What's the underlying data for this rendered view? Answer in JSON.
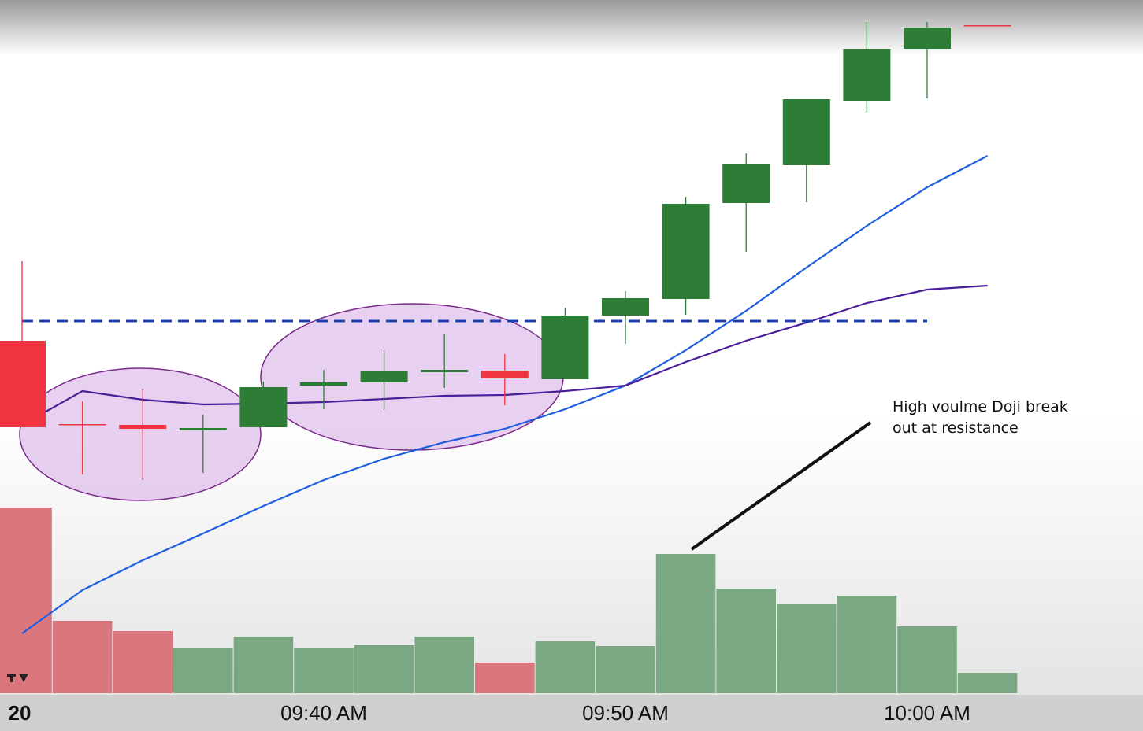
{
  "chart_data": {
    "type": "candlestick",
    "categories": [
      "20",
      null,
      null,
      null,
      null,
      "09:40 AM",
      null,
      null,
      null,
      null,
      "09:50 AM",
      null,
      null,
      null,
      null,
      "10:00 AM",
      null
    ],
    "open": [
      44.7,
      34.1,
      34.0,
      33.3,
      33.7,
      39.0,
      39.4,
      40.7,
      40.9,
      39.8,
      47.9,
      50.0,
      62.2,
      67.0,
      75.2,
      81.8,
      84.8
    ],
    "high": [
      54.8,
      37.0,
      38.6,
      35.3,
      39.5,
      41.0,
      43.5,
      45.6,
      43.0,
      48.9,
      51.0,
      63.0,
      68.5,
      75.4,
      85.2,
      85.2,
      84.8
    ],
    "low": [
      33.7,
      27.7,
      27.0,
      27.9,
      33.7,
      36.0,
      35.9,
      38.7,
      36.5,
      39.8,
      44.3,
      48.0,
      56.0,
      62.3,
      73.7,
      75.5,
      84.7
    ],
    "close": [
      33.7,
      34.0,
      33.5,
      33.6,
      38.8,
      39.4,
      40.8,
      41.0,
      39.9,
      47.9,
      50.1,
      62.1,
      67.2,
      75.4,
      81.8,
      84.5,
      84.7
    ],
    "up_color": "#2e7d36",
    "down_color": "#ef3340",
    "ylim": [
      0,
      88
    ],
    "moving_averages": [
      {
        "color": "#1f5ee0",
        "values": [
          7.5,
          13.0,
          16.8,
          20.2,
          23.7,
          27.0,
          29.7,
          31.8,
          33.5,
          36.0,
          39.0,
          43.5,
          48.5,
          54.0,
          59.3,
          64.2,
          68.2
        ]
      },
      {
        "color": "#4b1f9a",
        "values": [
          34.0,
          38.3,
          37.2,
          36.6,
          36.7,
          36.9,
          37.3,
          37.7,
          37.8,
          38.3,
          39.0,
          42.0,
          44.7,
          47.0,
          49.5,
          51.2,
          51.7
        ]
      }
    ],
    "resistance": {
      "value": 47.2,
      "color": "#1f3fb0"
    },
    "volume": {
      "values": [
        236,
        92,
        79,
        57,
        72,
        57,
        61,
        72,
        39,
        66,
        60,
        177,
        133,
        113,
        124,
        85,
        26
      ],
      "colors": [
        "#d9777c",
        "#d9777c",
        "#d9777c",
        "#7aa882",
        "#7aa882",
        "#7aa882",
        "#7aa882",
        "#7aa882",
        "#d9777c",
        "#7aa882",
        "#7aa882",
        "#7aa882",
        "#7aa882",
        "#7aa882",
        "#7aa882",
        "#7aa882",
        "#7aa882"
      ],
      "ylim": [
        0,
        300
      ]
    },
    "annotation": {
      "lines": [
        "High voulme Doji break",
        "out at resistance"
      ]
    }
  }
}
